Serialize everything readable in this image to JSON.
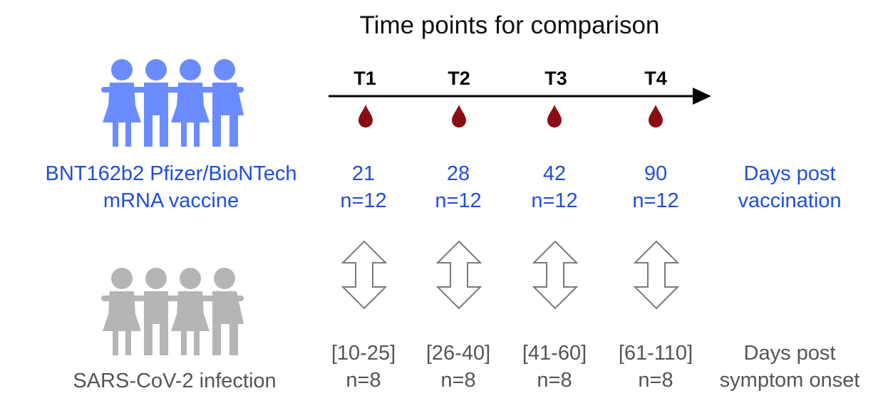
{
  "title": "Time points for comparison",
  "timepoints": [
    {
      "label": "T1",
      "vaccine_days": "21",
      "vaccine_n": "n=12",
      "infection_range": "[10-25]",
      "infection_n": "n=8"
    },
    {
      "label": "T2",
      "vaccine_days": "28",
      "vaccine_n": "n=12",
      "infection_range": "[26-40]",
      "infection_n": "n=8"
    },
    {
      "label": "T3",
      "vaccine_days": "42",
      "vaccine_n": "n=12",
      "infection_range": "[41-60]",
      "infection_n": "n=8"
    },
    {
      "label": "T4",
      "vaccine_days": "90",
      "vaccine_n": "n=12",
      "infection_range": "[61-110]",
      "infection_n": "n=8"
    }
  ],
  "vaccine_group": {
    "line1": "BNT162b2 Pfizer/BioNTech",
    "line2": "mRNA vaccine",
    "unit_line1": "Days post",
    "unit_line2": "vaccination",
    "color": "#1f4fd8",
    "icon_color": "#6b8cff",
    "icon": "people-group-icon"
  },
  "infection_group": {
    "label": "SARS-CoV-2 infection",
    "unit_line1": "Days post",
    "unit_line2": "symptom onset",
    "color": "#555555",
    "icon_color": "#b5b5b5",
    "icon": "people-group-icon"
  },
  "icons": {
    "blood_drop": "blood-drop-icon",
    "blood_drop_color": "#8b0d14",
    "comparison_arrow": "double-arrow-icon"
  }
}
